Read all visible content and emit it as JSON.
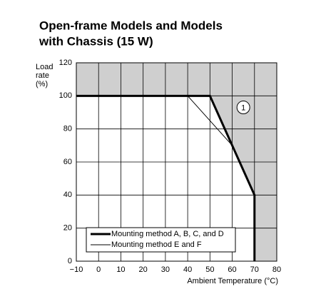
{
  "chart_data": {
    "type": "line",
    "title_lines": [
      "Open-frame Models and Models",
      "with Chassis (15 W)"
    ],
    "ylabel_lines": [
      "Load",
      "rate",
      "(%)"
    ],
    "xlabel": "Ambient Temperature (°C)",
    "annotation": "1",
    "xlim": [
      -10,
      80
    ],
    "xticks": [
      {
        "value": -10,
        "label": "−10"
      },
      0,
      10,
      20,
      30,
      40,
      50,
      60,
      70,
      80
    ],
    "ylim": [
      0,
      120
    ],
    "yticks": [
      0,
      20,
      40,
      60,
      80,
      100,
      120
    ],
    "grid": true,
    "legend": "lower left",
    "series": [
      {
        "name": "Mounting method A, B, C, and D",
        "color": "#000000",
        "width": 3,
        "x": [
          -10,
          50,
          60,
          70,
          70
        ],
        "values": [
          100,
          100,
          70,
          40,
          0
        ]
      },
      {
        "name": "Mounting method E and F",
        "color": "#000000",
        "width": 1,
        "x": [
          -10,
          40,
          60
        ],
        "values": [
          100,
          100,
          70
        ]
      }
    ]
  }
}
